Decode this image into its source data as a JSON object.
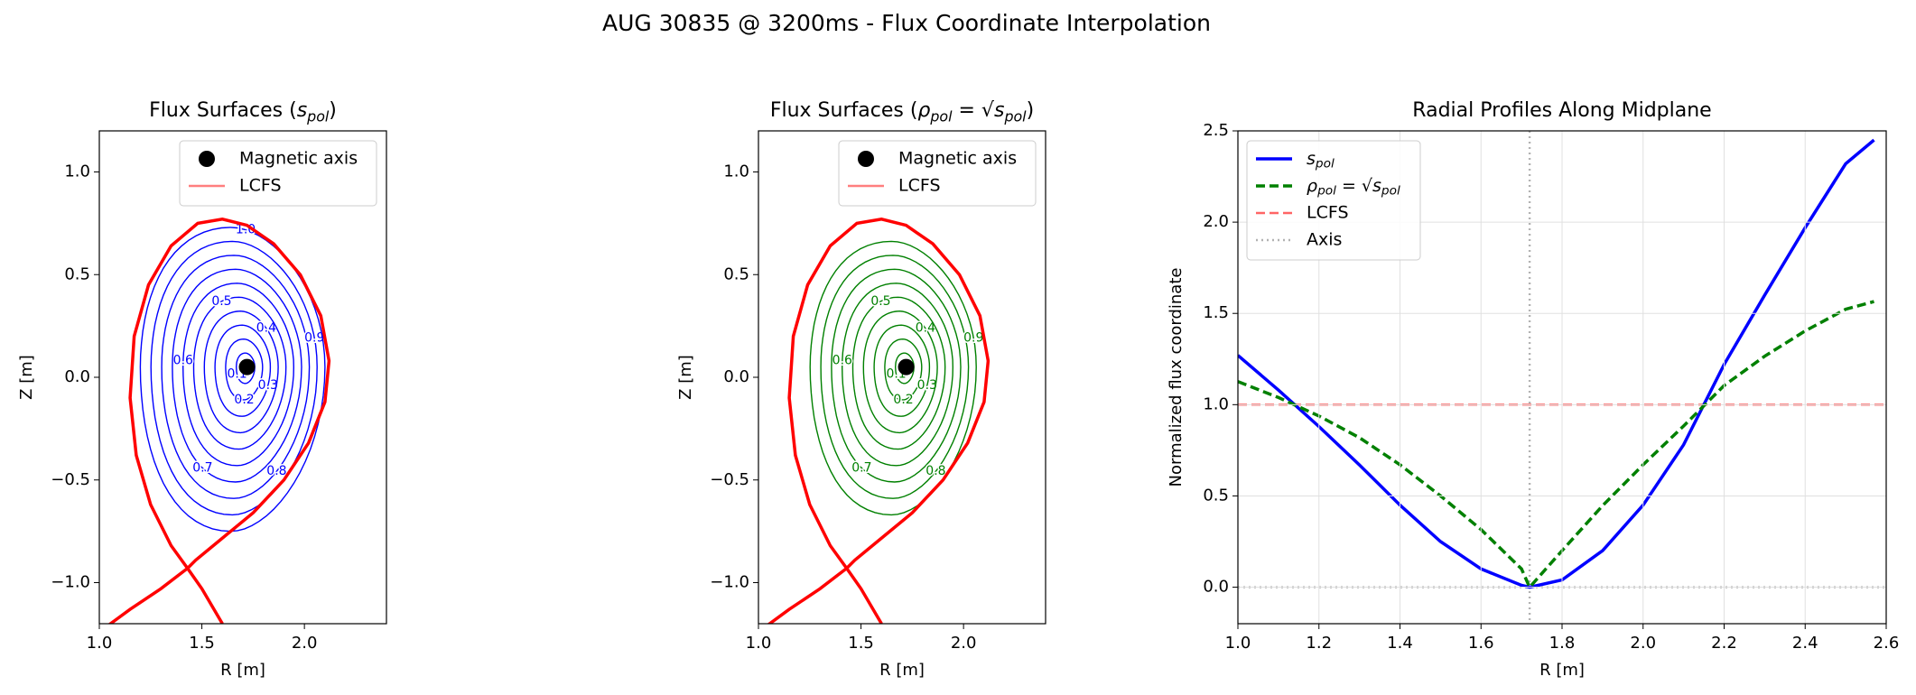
{
  "title": "AUG 30835 @ 3200ms - Flux Coordinate Interpolation",
  "chart_data": [
    {
      "type": "contour",
      "title": [
        {
          "text": "Flux Surfaces ("
        },
        {
          "text": "s",
          "italic": true
        },
        {
          "text": "pol",
          "italic": true,
          "sub": true
        },
        {
          "text": ")"
        }
      ],
      "xlabel": "R [m]",
      "ylabel": "Z [m]",
      "xlim": [
        1.0,
        2.4
      ],
      "ylim": [
        -1.2,
        1.2
      ],
      "xticks": [
        {
          "value": 1.0,
          "label": "1.0"
        },
        1.5,
        {
          "value": 2.0,
          "label": "2.0"
        }
      ],
      "yticks": [
        {
          "value": -1.0,
          "label": "−1.0"
        },
        {
          "value": -0.5,
          "label": "−0.5"
        },
        {
          "value": 0.0,
          "label": "0.0"
        },
        0.5,
        {
          "value": 1.0,
          "label": "1.0"
        }
      ],
      "levels": [
        0.1,
        0.2,
        0.3,
        0.4,
        0.5,
        0.6,
        0.7,
        0.8,
        0.9,
        1.0
      ],
      "level_labels": [
        "0.1",
        "0.2",
        "0.3",
        "0.4",
        "0.5",
        "0.6",
        "0.7",
        "0.8",
        "0.9",
        "1.0"
      ],
      "contour_color": "#0000ff",
      "series": [
        {
          "name": "Magnetic axis",
          "color": "#000000",
          "marker": "circle",
          "x": [
            1.72
          ],
          "y": [
            0.05
          ]
        },
        {
          "name": "LCFS",
          "color": "#ff0000",
          "x": [
            1.43,
            1.35,
            1.25,
            1.18,
            1.15,
            1.17,
            1.24,
            1.35,
            1.48,
            1.6,
            1.72,
            1.85,
            1.98,
            2.08,
            2.12,
            2.1,
            2.02,
            1.9,
            1.75,
            1.58,
            1.47,
            1.43,
            null,
            1.43,
            1.3,
            1.15,
            1.0,
            null,
            1.43,
            1.5,
            1.6
          ],
          "y": [
            -0.93,
            -0.82,
            -0.62,
            -0.38,
            -0.1,
            0.2,
            0.45,
            0.64,
            0.75,
            0.77,
            0.74,
            0.65,
            0.5,
            0.3,
            0.08,
            -0.12,
            -0.32,
            -0.5,
            -0.66,
            -0.8,
            -0.89,
            -0.93,
            null,
            -0.93,
            -1.03,
            -1.13,
            -1.24,
            null,
            -0.93,
            -1.03,
            -1.2
          ]
        }
      ],
      "legend": "upper right"
    },
    {
      "type": "contour",
      "title": [
        {
          "text": "Flux Surfaces ("
        },
        {
          "text": "ρ",
          "italic": true
        },
        {
          "text": "pol",
          "italic": true,
          "sub": true
        },
        {
          "text": " = √"
        },
        {
          "text": "s",
          "italic": true
        },
        {
          "text": "pol",
          "italic": true,
          "sub": true
        },
        {
          "text": ")"
        }
      ],
      "xlabel": "R [m]",
      "ylabel": "Z [m]",
      "xlim": [
        1.0,
        2.4
      ],
      "ylim": [
        -1.2,
        1.2
      ],
      "xticks": [
        {
          "value": 1.0,
          "label": "1.0"
        },
        1.5,
        {
          "value": 2.0,
          "label": "2.0"
        }
      ],
      "yticks": [
        {
          "value": -1.0,
          "label": "−1.0"
        },
        {
          "value": -0.5,
          "label": "−0.5"
        },
        {
          "value": 0.0,
          "label": "0.0"
        },
        0.5,
        {
          "value": 1.0,
          "label": "1.0"
        }
      ],
      "levels": [
        0.1,
        0.2,
        0.3,
        0.4,
        0.5,
        0.6,
        0.7,
        0.8,
        0.9
      ],
      "level_labels": [
        "0.1",
        "0.2",
        "0.3",
        "0.4",
        "0.5",
        "0.6",
        "0.7",
        "0.8",
        "0.9"
      ],
      "contour_color": "#008000",
      "series": [
        {
          "name": "Magnetic axis",
          "color": "#000000",
          "marker": "circle",
          "x": [
            1.72
          ],
          "y": [
            0.05
          ]
        },
        {
          "name": "LCFS",
          "color": "#ff0000",
          "x": [
            1.43,
            1.35,
            1.25,
            1.18,
            1.15,
            1.17,
            1.24,
            1.35,
            1.48,
            1.6,
            1.72,
            1.85,
            1.98,
            2.08,
            2.12,
            2.1,
            2.02,
            1.9,
            1.75,
            1.58,
            1.47,
            1.43,
            null,
            1.43,
            1.3,
            1.15,
            1.0,
            null,
            1.43,
            1.5,
            1.6
          ],
          "y": [
            -0.93,
            -0.82,
            -0.62,
            -0.38,
            -0.1,
            0.2,
            0.45,
            0.64,
            0.75,
            0.77,
            0.74,
            0.65,
            0.5,
            0.3,
            0.08,
            -0.12,
            -0.32,
            -0.5,
            -0.66,
            -0.8,
            -0.89,
            -0.93,
            null,
            -0.93,
            -1.03,
            -1.13,
            -1.24,
            null,
            -0.93,
            -1.03,
            -1.2
          ]
        }
      ],
      "legend": "upper right"
    },
    {
      "type": "line",
      "title": "Radial Profiles Along Midplane",
      "xlabel": "R [m]",
      "ylabel": "Normalized flux coordinate",
      "xlim": [
        1.0,
        2.6
      ],
      "ylim": [
        -0.2,
        2.5
      ],
      "xticks": [
        {
          "value": 1.0,
          "label": "1.0"
        },
        1.2,
        1.4,
        1.6,
        1.8,
        {
          "value": 2.0,
          "label": "2.0"
        },
        2.2,
        2.4,
        2.6
      ],
      "yticks": [
        {
          "value": 0.0,
          "label": "0.0"
        },
        0.5,
        {
          "value": 1.0,
          "label": "1.0"
        },
        1.5,
        {
          "value": 2.0,
          "label": "2.0"
        },
        2.5
      ],
      "grid": true,
      "x": [
        1.0,
        1.1,
        1.2,
        1.3,
        1.4,
        1.5,
        1.6,
        1.7,
        1.72,
        1.8,
        1.9,
        2.0,
        2.1,
        2.2,
        2.3,
        2.4,
        2.5,
        2.57
      ],
      "series": [
        {
          "name": [
            {
              "text": "s",
              "italic": true
            },
            {
              "text": "pol",
              "italic": true,
              "sub": true
            }
          ],
          "color": "#0000ff",
          "dash": "solid",
          "values": [
            1.27,
            1.08,
            0.88,
            0.67,
            0.45,
            0.25,
            0.1,
            0.01,
            0.0,
            0.04,
            0.2,
            0.45,
            0.78,
            1.22,
            1.6,
            1.97,
            2.32,
            2.45
          ]
        },
        {
          "name": [
            {
              "text": "ρ",
              "italic": true
            },
            {
              "text": "pol",
              "italic": true,
              "sub": true
            },
            {
              "text": " = √"
            },
            {
              "text": "s",
              "italic": true
            },
            {
              "text": "pol",
              "italic": true,
              "sub": true
            }
          ],
          "color": "#008000",
          "dash": "dashed",
          "values": [
            1.127,
            1.039,
            0.938,
            0.819,
            0.671,
            0.5,
            0.316,
            0.1,
            0.0,
            0.2,
            0.447,
            0.671,
            0.883,
            1.105,
            1.265,
            1.404,
            1.523,
            1.565
          ]
        }
      ],
      "reference_lines": [
        {
          "name": "LCFS",
          "color": "#ff0000",
          "dash": "dashed",
          "y": 1.0
        },
        {
          "name": "Axis",
          "color": "#808080",
          "dash": "dotted",
          "x": 1.72,
          "y": 0.0
        }
      ],
      "legend": "upper left"
    }
  ]
}
